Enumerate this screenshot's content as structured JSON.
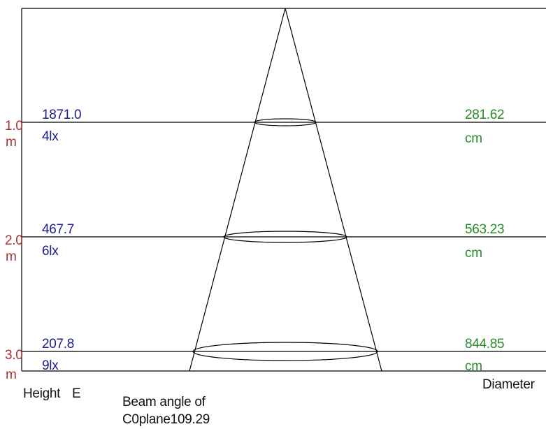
{
  "rows": [
    {
      "height_value": "1.0",
      "height_unit": "m",
      "lux_value": "1871.0",
      "lux_unit": "4lx",
      "diameter_value": "281.62",
      "diameter_unit": "cm"
    },
    {
      "height_value": "2.0",
      "height_unit": "m",
      "lux_value": "467.7",
      "lux_unit": "6lx",
      "diameter_value": "563.23",
      "diameter_unit": "cm"
    },
    {
      "height_value": "3.0",
      "height_unit": "m",
      "lux_value": "207.8",
      "lux_unit": "9lx",
      "diameter_value": "844.85",
      "diameter_unit": "cm"
    }
  ],
  "footer": {
    "height_label": "Height",
    "e_label": "E",
    "beam_line1": "Beam angle of",
    "beam_line2": "C0plane109.29",
    "diameter_label": "Diameter"
  },
  "colors": {
    "height": "#a93232",
    "lux": "#1c1c8c",
    "diameter": "#2a8a2a",
    "lines": "#000000"
  }
}
